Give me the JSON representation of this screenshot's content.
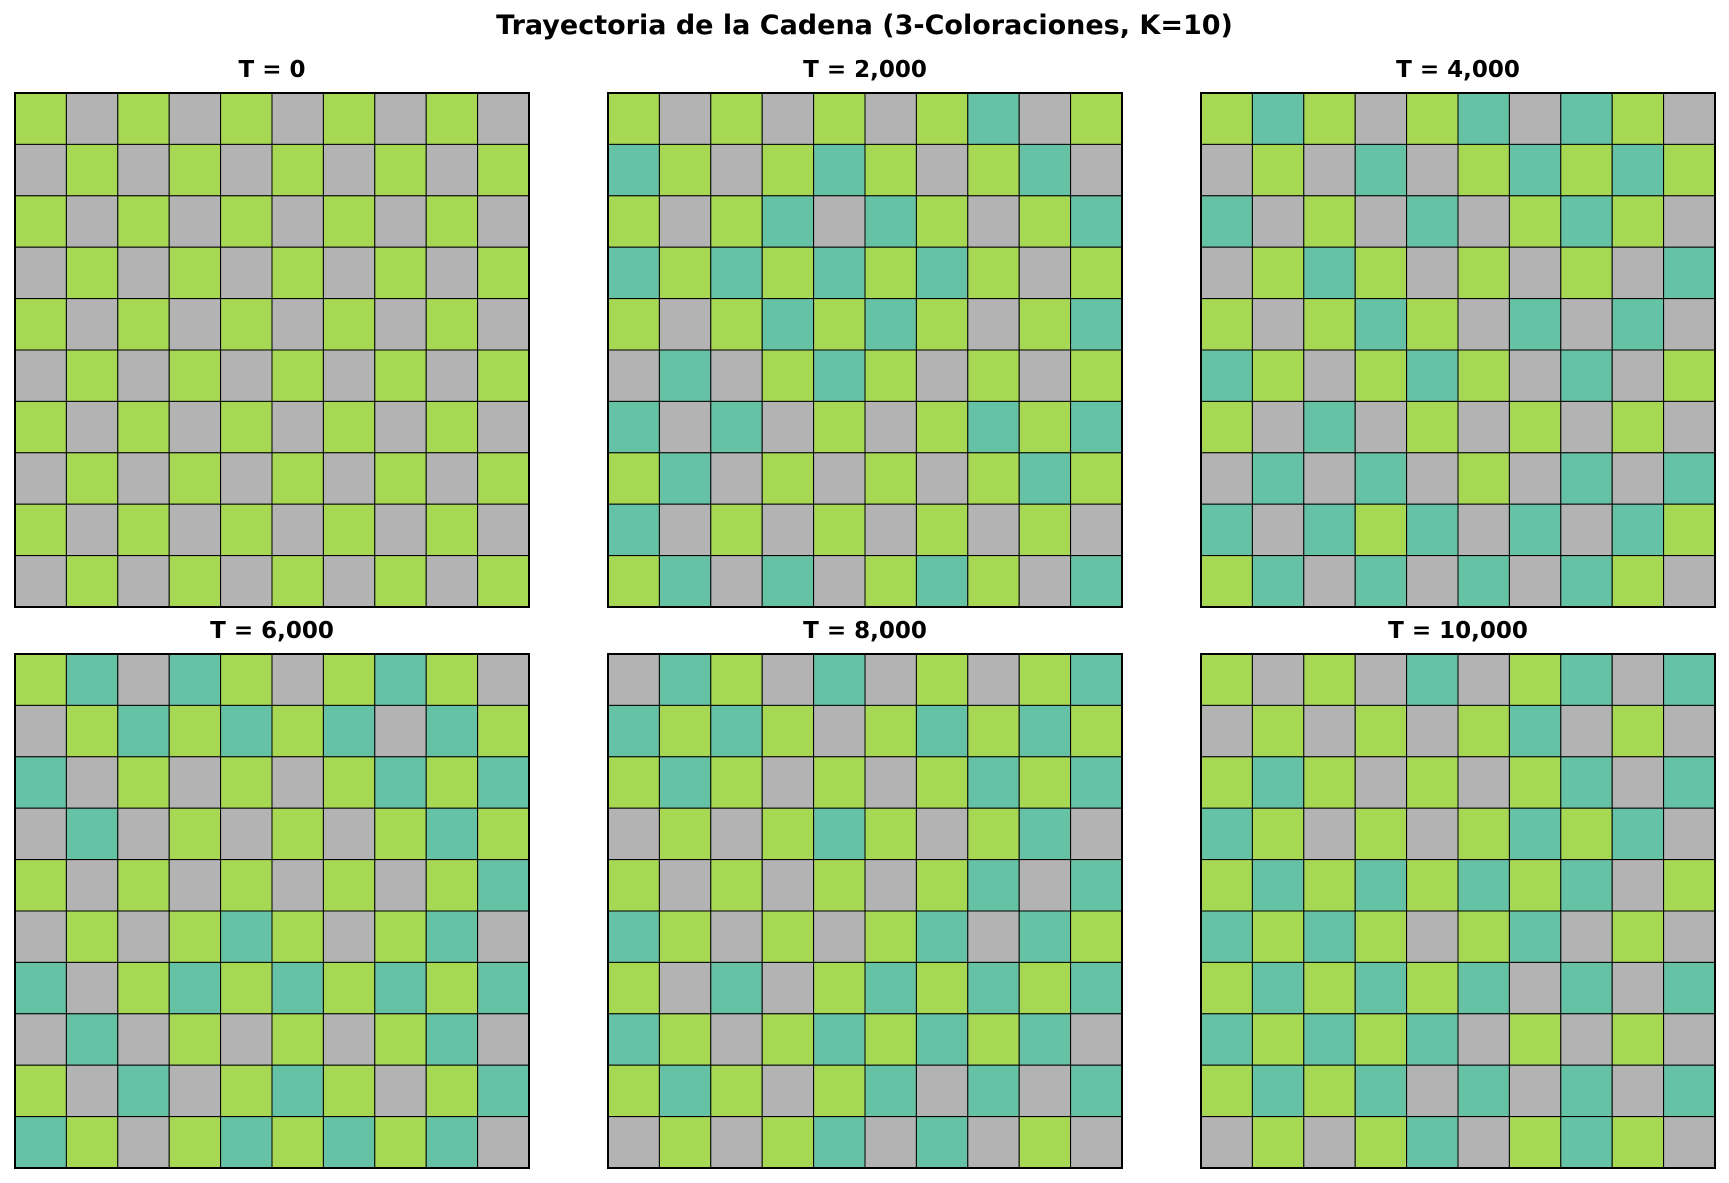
{
  "title": "Trayectoria de la Cadena (3-Coloraciones, K=10)",
  "colors": {
    "0": "#b3b3b3",
    "1": "#a6d854",
    "2": "#66c2a5"
  },
  "chart_data": [
    {
      "type": "heatmap",
      "title": "T = 0",
      "grid": [
        [
          1,
          0,
          1,
          0,
          1,
          0,
          1,
          0,
          1,
          0
        ],
        [
          0,
          1,
          0,
          1,
          0,
          1,
          0,
          1,
          0,
          1
        ],
        [
          1,
          0,
          1,
          0,
          1,
          0,
          1,
          0,
          1,
          0
        ],
        [
          0,
          1,
          0,
          1,
          0,
          1,
          0,
          1,
          0,
          1
        ],
        [
          1,
          0,
          1,
          0,
          1,
          0,
          1,
          0,
          1,
          0
        ],
        [
          0,
          1,
          0,
          1,
          0,
          1,
          0,
          1,
          0,
          1
        ],
        [
          1,
          0,
          1,
          0,
          1,
          0,
          1,
          0,
          1,
          0
        ],
        [
          0,
          1,
          0,
          1,
          0,
          1,
          0,
          1,
          0,
          1
        ],
        [
          1,
          0,
          1,
          0,
          1,
          0,
          1,
          0,
          1,
          0
        ],
        [
          0,
          1,
          0,
          1,
          0,
          1,
          0,
          1,
          0,
          1
        ]
      ]
    },
    {
      "type": "heatmap",
      "title": "T = 2,000",
      "grid": [
        [
          1,
          0,
          1,
          0,
          1,
          0,
          1,
          2,
          0,
          1
        ],
        [
          2,
          1,
          0,
          1,
          2,
          1,
          0,
          1,
          2,
          0
        ],
        [
          1,
          0,
          1,
          2,
          0,
          2,
          1,
          0,
          1,
          2
        ],
        [
          2,
          1,
          2,
          1,
          2,
          1,
          2,
          1,
          0,
          1
        ],
        [
          1,
          0,
          1,
          2,
          1,
          2,
          1,
          0,
          1,
          2
        ],
        [
          0,
          2,
          0,
          1,
          2,
          1,
          0,
          1,
          0,
          1
        ],
        [
          2,
          0,
          2,
          0,
          1,
          0,
          1,
          2,
          1,
          2
        ],
        [
          1,
          2,
          0,
          1,
          0,
          1,
          0,
          1,
          2,
          1
        ],
        [
          2,
          0,
          1,
          0,
          1,
          0,
          1,
          0,
          1,
          0
        ],
        [
          1,
          2,
          0,
          2,
          0,
          1,
          2,
          1,
          0,
          2
        ]
      ]
    },
    {
      "type": "heatmap",
      "title": "T = 4,000",
      "grid": [
        [
          1,
          2,
          1,
          0,
          1,
          2,
          0,
          2,
          1,
          0
        ],
        [
          0,
          1,
          0,
          2,
          0,
          1,
          2,
          1,
          2,
          1
        ],
        [
          2,
          0,
          1,
          0,
          2,
          0,
          1,
          2,
          1,
          0
        ],
        [
          0,
          1,
          2,
          1,
          0,
          1,
          0,
          1,
          0,
          2
        ],
        [
          1,
          0,
          1,
          2,
          1,
          0,
          2,
          0,
          2,
          0
        ],
        [
          2,
          1,
          0,
          1,
          2,
          1,
          0,
          2,
          0,
          1
        ],
        [
          1,
          0,
          2,
          0,
          1,
          0,
          1,
          0,
          1,
          0
        ],
        [
          0,
          2,
          0,
          2,
          0,
          1,
          0,
          2,
          0,
          2
        ],
        [
          2,
          0,
          2,
          1,
          2,
          0,
          2,
          0,
          2,
          1
        ],
        [
          1,
          2,
          0,
          2,
          0,
          2,
          0,
          2,
          1,
          0
        ]
      ]
    },
    {
      "type": "heatmap",
      "title": "T = 6,000",
      "grid": [
        [
          1,
          2,
          0,
          2,
          1,
          0,
          1,
          2,
          1,
          0
        ],
        [
          0,
          1,
          2,
          1,
          2,
          1,
          2,
          0,
          2,
          1
        ],
        [
          2,
          0,
          1,
          0,
          1,
          0,
          1,
          2,
          1,
          2
        ],
        [
          0,
          2,
          0,
          1,
          0,
          1,
          0,
          1,
          2,
          1
        ],
        [
          1,
          0,
          1,
          0,
          1,
          0,
          1,
          0,
          1,
          2
        ],
        [
          0,
          1,
          0,
          1,
          2,
          1,
          0,
          1,
          2,
          0
        ],
        [
          2,
          0,
          1,
          2,
          1,
          2,
          1,
          2,
          1,
          2
        ],
        [
          0,
          2,
          0,
          1,
          0,
          1,
          0,
          1,
          2,
          0
        ],
        [
          1,
          0,
          2,
          0,
          1,
          2,
          1,
          0,
          1,
          2
        ],
        [
          2,
          1,
          0,
          1,
          2,
          1,
          2,
          1,
          2,
          0
        ]
      ]
    },
    {
      "type": "heatmap",
      "title": "T = 8,000",
      "grid": [
        [
          0,
          2,
          1,
          0,
          2,
          0,
          1,
          0,
          1,
          2
        ],
        [
          2,
          1,
          2,
          1,
          0,
          1,
          2,
          1,
          2,
          1
        ],
        [
          1,
          2,
          1,
          0,
          1,
          0,
          1,
          2,
          1,
          2
        ],
        [
          0,
          1,
          0,
          1,
          2,
          1,
          0,
          1,
          2,
          0
        ],
        [
          1,
          0,
          1,
          0,
          1,
          0,
          1,
          2,
          0,
          2
        ],
        [
          2,
          1,
          0,
          1,
          0,
          1,
          2,
          0,
          2,
          1
        ],
        [
          1,
          0,
          2,
          0,
          1,
          2,
          1,
          2,
          1,
          2
        ],
        [
          2,
          1,
          0,
          1,
          2,
          1,
          2,
          1,
          2,
          0
        ],
        [
          1,
          2,
          1,
          0,
          1,
          2,
          0,
          2,
          0,
          2
        ],
        [
          0,
          1,
          0,
          1,
          2,
          0,
          2,
          0,
          1,
          0
        ]
      ]
    },
    {
      "type": "heatmap",
      "title": "T = 10,000",
      "grid": [
        [
          1,
          0,
          1,
          0,
          2,
          0,
          1,
          2,
          0,
          2
        ],
        [
          0,
          1,
          0,
          1,
          0,
          1,
          2,
          0,
          1,
          0
        ],
        [
          1,
          2,
          1,
          0,
          1,
          0,
          1,
          2,
          0,
          2
        ],
        [
          2,
          1,
          0,
          1,
          0,
          1,
          2,
          1,
          2,
          0
        ],
        [
          1,
          2,
          1,
          2,
          1,
          2,
          1,
          2,
          0,
          1
        ],
        [
          2,
          1,
          2,
          1,
          0,
          1,
          2,
          0,
          1,
          0
        ],
        [
          1,
          2,
          1,
          2,
          1,
          2,
          0,
          2,
          0,
          2
        ],
        [
          2,
          1,
          2,
          1,
          2,
          0,
          1,
          0,
          1,
          0
        ],
        [
          1,
          2,
          1,
          2,
          0,
          2,
          0,
          2,
          0,
          2
        ],
        [
          0,
          1,
          0,
          1,
          2,
          0,
          1,
          2,
          1,
          0
        ]
      ]
    }
  ]
}
